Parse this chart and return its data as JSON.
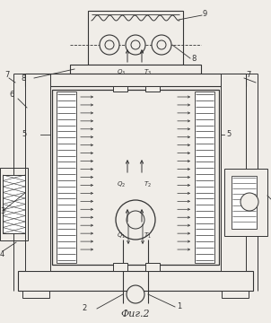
{
  "bg_color": "#f0ede8",
  "line_color": "#333333",
  "title": "Фиг.2",
  "fig_w": 3.02,
  "fig_h": 3.6,
  "dpi": 100
}
